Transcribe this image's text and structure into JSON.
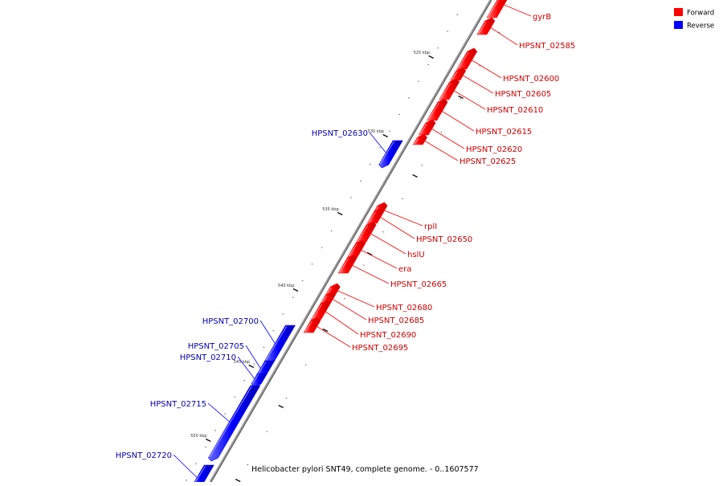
{
  "legend": {
    "forward": {
      "label": "Forward",
      "color": "#ff0000"
    },
    "reverse": {
      "label": "Reverse",
      "color": "#0000ff"
    }
  },
  "caption": "Helicobacter pylori SNT49, complete genome. - 0..1607577",
  "ticks": [
    "525 kbp",
    "530 kbp",
    "535 kbp",
    "540 kbp",
    "545 kbp",
    "550 kbp"
  ],
  "genes": [
    {
      "name": "gyrB",
      "strand": "forward"
    },
    {
      "name": "HPSNT_02585",
      "strand": "forward"
    },
    {
      "name": "HPSNT_02600",
      "strand": "forward"
    },
    {
      "name": "HPSNT_02605",
      "strand": "forward"
    },
    {
      "name": "HPSNT_02610",
      "strand": "forward"
    },
    {
      "name": "HPSNT_02615",
      "strand": "forward"
    },
    {
      "name": "HPSNT_02620",
      "strand": "forward"
    },
    {
      "name": "HPSNT_02625",
      "strand": "forward"
    },
    {
      "name": "HPSNT_02630",
      "strand": "reverse"
    },
    {
      "name": "rplI",
      "strand": "forward"
    },
    {
      "name": "HPSNT_02650",
      "strand": "forward"
    },
    {
      "name": "hslU",
      "strand": "forward"
    },
    {
      "name": "era",
      "strand": "forward"
    },
    {
      "name": "HPSNT_02665",
      "strand": "forward"
    },
    {
      "name": "HPSNT_02680",
      "strand": "forward"
    },
    {
      "name": "HPSNT_02685",
      "strand": "forward"
    },
    {
      "name": "HPSNT_02690",
      "strand": "forward"
    },
    {
      "name": "HPSNT_02695",
      "strand": "forward"
    },
    {
      "name": "HPSNT_02700",
      "strand": "reverse"
    },
    {
      "name": "HPSNT_02705",
      "strand": "reverse"
    },
    {
      "name": "HPSNT_02710",
      "strand": "reverse"
    },
    {
      "name": "HPSNT_02715",
      "strand": "reverse"
    },
    {
      "name": "HPSNT_02720",
      "strand": "reverse"
    }
  ]
}
